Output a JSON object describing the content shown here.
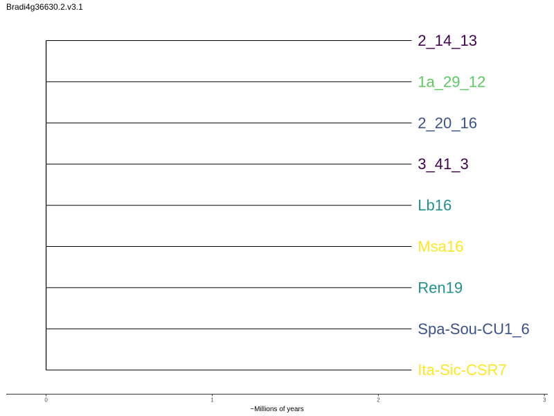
{
  "title": "Bradi4g36630.2.v3.1",
  "tree": {
    "type": "dendrogram",
    "branch_color": "#000000",
    "root_time": 0,
    "leaf_time": 2.2,
    "tips": [
      {
        "label": "2_14_13",
        "color": "#440154"
      },
      {
        "label": "1a_29_12",
        "color": "#5ec962"
      },
      {
        "label": "2_20_16",
        "color": "#3b528b"
      },
      {
        "label": "3_41_3",
        "color": "#440154"
      },
      {
        "label": "Lb16",
        "color": "#21918c"
      },
      {
        "label": "Msa16",
        "color": "#fde725"
      },
      {
        "label": "Ren19",
        "color": "#21918c"
      },
      {
        "label": "Spa-Sou-CU1_6",
        "color": "#3b528b"
      },
      {
        "label": "Ita-Sic-CSR7",
        "color": "#fde725"
      }
    ]
  },
  "axis": {
    "label": "~Millions of years",
    "xlim": [
      -0.24,
      3.02
    ],
    "ticks": [
      0,
      1,
      2,
      3
    ],
    "tick_labels": [
      "0",
      "1",
      "2",
      "3"
    ]
  }
}
